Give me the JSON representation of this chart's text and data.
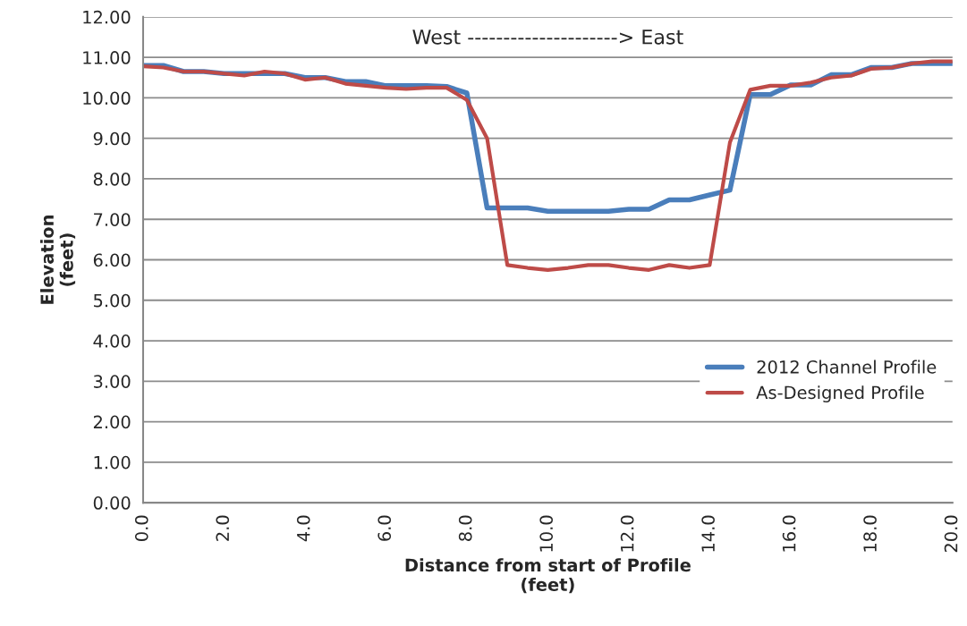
{
  "chart_data": {
    "type": "line",
    "xlabel": "Distance from start of Profile\n(feet)",
    "ylabel": "Elevation\n(feet)",
    "annotations": [
      "West ---------------------> East"
    ],
    "x": [
      0,
      0.5,
      1,
      1.5,
      2,
      2.5,
      3,
      3.5,
      4,
      4.5,
      5,
      5.5,
      6,
      6.5,
      7,
      7.5,
      8,
      8.5,
      9,
      9.5,
      10,
      10.5,
      11,
      11.5,
      12,
      12.5,
      13,
      13.5,
      14,
      14.5,
      15,
      15.5,
      16,
      16.5,
      17,
      17.5,
      18,
      18.5,
      19,
      19.5,
      20
    ],
    "series": [
      {
        "name": "2012 Channel Profile",
        "color": "#4a7ebb",
        "values": [
          10.8,
          10.8,
          10.65,
          10.65,
          10.6,
          10.6,
          10.6,
          10.6,
          10.5,
          10.5,
          10.4,
          10.4,
          10.3,
          10.3,
          10.3,
          10.28,
          10.12,
          7.28,
          7.28,
          7.28,
          7.2,
          7.2,
          7.2,
          7.2,
          7.25,
          7.25,
          7.48,
          7.48,
          7.6,
          7.72,
          10.08,
          10.08,
          10.32,
          10.32,
          10.57,
          10.57,
          10.75,
          10.75,
          10.85,
          10.85,
          10.85
        ]
      },
      {
        "name": "As-Designed Profile",
        "color": "#be4b48",
        "values": [
          10.78,
          10.75,
          10.65,
          10.65,
          10.6,
          10.55,
          10.65,
          10.6,
          10.45,
          10.5,
          10.35,
          10.3,
          10.25,
          10.22,
          10.25,
          10.25,
          9.95,
          9.0,
          5.87,
          5.8,
          5.75,
          5.8,
          5.87,
          5.87,
          5.8,
          5.75,
          5.87,
          5.8,
          5.87,
          8.9,
          10.2,
          10.3,
          10.3,
          10.38,
          10.5,
          10.55,
          10.72,
          10.75,
          10.85,
          10.9,
          10.9
        ]
      }
    ],
    "xlim": [
      0,
      20
    ],
    "ylim": [
      0,
      12
    ],
    "xticks": [
      {
        "value": 0,
        "label": "0.0"
      },
      {
        "value": 2,
        "label": "2.0"
      },
      {
        "value": 4,
        "label": "4.0"
      },
      {
        "value": 6,
        "label": "6.0"
      },
      {
        "value": 8,
        "label": "8.0"
      },
      {
        "value": 10,
        "label": "10.0"
      },
      {
        "value": 12,
        "label": "12.0"
      },
      {
        "value": 14,
        "label": "14.0"
      },
      {
        "value": 16,
        "label": "16.0"
      },
      {
        "value": 18,
        "label": "18.0"
      },
      {
        "value": 20,
        "label": "20.0"
      }
    ],
    "yticks": [
      {
        "value": 0,
        "label": "0.00"
      },
      {
        "value": 1,
        "label": "1.00"
      },
      {
        "value": 2,
        "label": "2.00"
      },
      {
        "value": 3,
        "label": "3.00"
      },
      {
        "value": 4,
        "label": "4.00"
      },
      {
        "value": 5,
        "label": "5.00"
      },
      {
        "value": 6,
        "label": "6.00"
      },
      {
        "value": 7,
        "label": "7.00"
      },
      {
        "value": 8,
        "label": "8.00"
      },
      {
        "value": 9,
        "label": "9.00"
      },
      {
        "value": 10,
        "label": "10.00"
      },
      {
        "value": 11,
        "label": "11.00"
      },
      {
        "value": 12,
        "label": "12.00"
      }
    ],
    "grid": "y",
    "legend": "center right",
    "line_style": "solid"
  }
}
